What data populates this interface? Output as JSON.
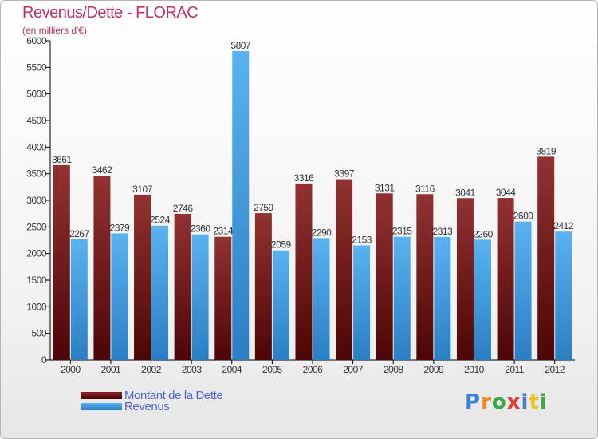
{
  "title": "Revenus/Dette - FLORAC",
  "subtitle": "(en milliers d'€)",
  "colors": {
    "debt": "#7a1a1a",
    "revenue": "#4aa3e6",
    "title": "#b8336a",
    "legend_text": "#4a66d6"
  },
  "legend": [
    {
      "label": "Montant de la Dette",
      "color": "#6b0f0f"
    },
    {
      "label": "Revenus",
      "color": "#4aa3e6"
    }
  ],
  "logo": {
    "letters": [
      "P",
      "r",
      "o",
      "x",
      "i",
      "t",
      "i"
    ],
    "colors": [
      "#3d7fd1",
      "#f08a1c",
      "#3da84a",
      "#e23c2e",
      "#3d7fd1",
      "#f0c51c",
      "#3da84a"
    ]
  },
  "chart_data": {
    "type": "bar",
    "categories": [
      "2000",
      "2001",
      "2002",
      "2003",
      "2004",
      "2005",
      "2006",
      "2007",
      "2008",
      "2009",
      "2010",
      "2011",
      "2012"
    ],
    "series": [
      {
        "name": "Montant de la Dette",
        "values": [
          3661,
          3462,
          3107,
          2746,
          2314,
          2759,
          3316,
          3397,
          3131,
          3116,
          3041,
          3044,
          3819
        ]
      },
      {
        "name": "Revenus",
        "values": [
          2267,
          2379,
          2524,
          2360,
          5807,
          2059,
          2290,
          2153,
          2315,
          2313,
          2260,
          2600,
          2412
        ]
      }
    ],
    "yticks": [
      "0",
      "500",
      "1000",
      "1500",
      "2000",
      "2500",
      "3000",
      "3500",
      "4000",
      "4500",
      "5000",
      "5500",
      "6000"
    ],
    "ylim": [
      0,
      6000
    ],
    "grid": false,
    "legend_position": "bottom-left"
  }
}
